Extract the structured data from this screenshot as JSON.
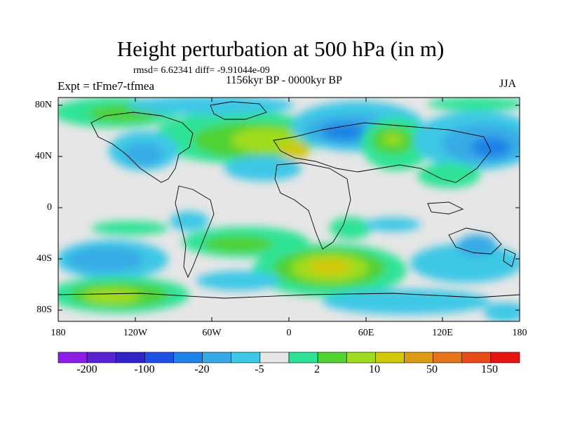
{
  "title": "Height perturbation at 500 hPa (in m)",
  "stats": "rmsd= 6.62341 diff= -9.91044e-09",
  "period": "1156kyr BP - 0000kyr BP",
  "expt": "Expt = tFme7-tfmea",
  "season": "JJA",
  "map": {
    "lat_labels": [
      "80N",
      "40N",
      "0",
      "40S",
      "80S"
    ],
    "lon_labels": [
      "180",
      "120W",
      "60W",
      "0",
      "60E",
      "120E",
      "180"
    ]
  },
  "colorbar": {
    "colors": [
      "#8c1ee6",
      "#5a23d2",
      "#3223c8",
      "#1e50e6",
      "#1e82e6",
      "#37aae6",
      "#3cc8e6",
      "#e6e6e6",
      "#2ee396",
      "#50d232",
      "#a0dc1e",
      "#d2c80a",
      "#dc9b14",
      "#e67319",
      "#e64b19",
      "#e61414"
    ],
    "labels": [
      "-200",
      "-100",
      "-20",
      "-5",
      "2",
      "10",
      "50",
      "150"
    ]
  }
}
